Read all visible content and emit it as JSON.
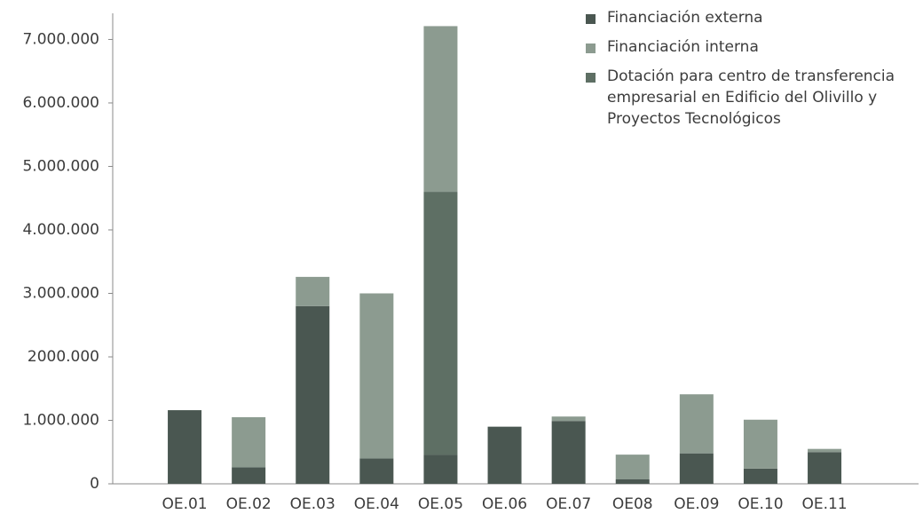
{
  "chart_data": {
    "type": "stacked_bar",
    "categories": [
      "OE.01",
      "OE.02",
      "OE.03",
      "OE.04",
      "OE.05",
      "OE.06",
      "OE.07",
      "OE08",
      "OE.09",
      "OE.10",
      "OE.11"
    ],
    "series": [
      {
        "name": "Financiación externa",
        "color": "#4a5751",
        "values": [
          1160000,
          260000,
          2800000,
          400000,
          460000,
          900000,
          990000,
          70000,
          480000,
          240000,
          500000
        ]
      },
      {
        "name": "Financiación interna",
        "color": "#8c9b90",
        "values": [
          0,
          790000,
          460000,
          2600000,
          2610000,
          0,
          70000,
          390000,
          930000,
          770000,
          50000
        ]
      },
      {
        "name": "Dotación para centro de transferencia empresarial en Edificio del Olivillo y Proyectos Tecnológicos",
        "color": "#5e6f64",
        "values": [
          0,
          0,
          0,
          0,
          4140000,
          0,
          0,
          0,
          0,
          0,
          0
        ]
      }
    ],
    "ylim": [
      0,
      7300000
    ],
    "yticks": [
      0,
      {
        "value": 1000000,
        "label": "1.000.000"
      },
      {
        "value": 2000000,
        "label": "2000.000"
      },
      {
        "value": 3000000,
        "label": "3.000.000"
      },
      {
        "value": 4000000,
        "label": "4.000.000"
      },
      {
        "value": 5000000,
        "label": "5.000.000"
      },
      {
        "value": 6000000,
        "label": "6.000.000"
      },
      {
        "value": 7000000,
        "label": "7.000.000"
      }
    ]
  }
}
